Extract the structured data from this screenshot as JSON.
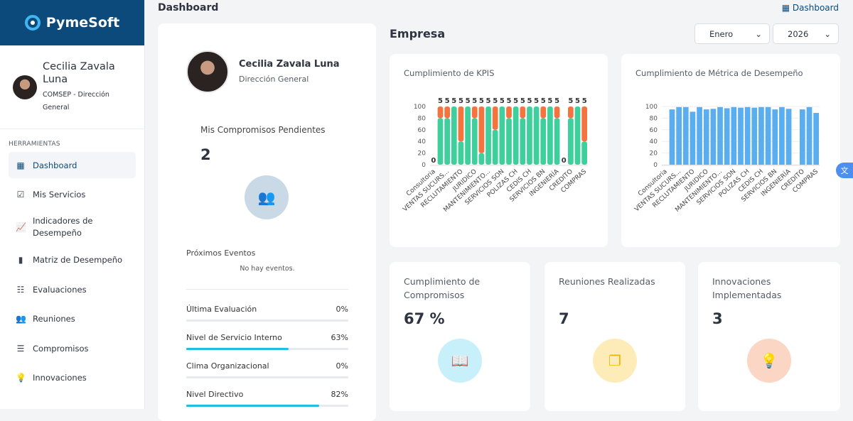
{
  "brand": "PymeSoft",
  "user": {
    "name": "Cecilia Zavala Luna",
    "role": "COMSEP - Dirección General"
  },
  "sidebar": {
    "section": "HERRAMIENTAS",
    "items": [
      {
        "label": "Dashboard",
        "icon": "dashboard-icon",
        "glyph": "▦"
      },
      {
        "label": "Mis Servicios",
        "icon": "services-icon",
        "glyph": "☑"
      },
      {
        "label": "Indicadores de Desempeño",
        "icon": "trend-chart-icon",
        "glyph": "📈"
      },
      {
        "label": "Matriz de Desempeño",
        "icon": "bar-chart-icon",
        "glyph": "▮"
      },
      {
        "label": "Evaluaciones",
        "icon": "checklist-icon",
        "glyph": "☷"
      },
      {
        "label": "Reuniones",
        "icon": "group-icon",
        "glyph": "👥"
      },
      {
        "label": "Compromisos",
        "icon": "list-icon",
        "glyph": "☰"
      },
      {
        "label": "Innovaciones",
        "icon": "lightbulb-icon",
        "glyph": "💡"
      }
    ]
  },
  "header": {
    "title": "Dashboard",
    "right_link": "Dashboard"
  },
  "profile": {
    "name": "Cecilia Zavala Luna",
    "role": "Dirección General",
    "pending_label": "Mis Compromisos Pendientes",
    "pending_count": "2",
    "events_label": "Próximos Eventos",
    "no_events": "No hay eventos.",
    "metrics": [
      {
        "label": "Última Evaluación",
        "value": "0%",
        "pct": 0
      },
      {
        "label": "Nivel de Servicio Interno",
        "value": "63%",
        "pct": 63
      },
      {
        "label": "Clima Organizacional",
        "value": "0%",
        "pct": 0
      },
      {
        "label": "Nivel Directivo",
        "value": "82%",
        "pct": 82
      }
    ]
  },
  "empresa": {
    "title": "Empresa",
    "month": "Enero",
    "year": "2026"
  },
  "chart_data": [
    {
      "type": "bar",
      "stacked": true,
      "title": "Cumplimiento de KPIS",
      "ylim": [
        0,
        100
      ],
      "yticks": [
        0,
        20,
        40,
        60,
        80,
        100
      ],
      "grid": false,
      "categories": [
        "Consultoria",
        "",
        "VENTAS SUCURS...",
        "",
        "RECLUTAMIENTO",
        "",
        "JURIDICO",
        "",
        "MANTENIMIENTO...",
        "",
        "SERVICIOS SON",
        "",
        "POLIZAS CH",
        "",
        "CEDIS CH",
        "",
        "SERVICIOS BN",
        "",
        "INGENIERÍA",
        "",
        "CREDITO",
        "",
        "COMPRAS"
      ],
      "series": [
        {
          "color": "#3ecf9c",
          "values": [
            0,
            80,
            80,
            100,
            40,
            100,
            80,
            20,
            100,
            60,
            100,
            80,
            100,
            80,
            100,
            100,
            80,
            100,
            80,
            0,
            80,
            100,
            40
          ]
        },
        {
          "color": "#f5733f",
          "values": [
            0,
            20,
            20,
            0,
            60,
            0,
            20,
            80,
            0,
            40,
            0,
            20,
            0,
            20,
            0,
            0,
            20,
            0,
            20,
            0,
            20,
            0,
            60
          ]
        }
      ],
      "data_labels": [
        "0",
        "5",
        "5",
        "5",
        "5",
        "5",
        "5",
        "5",
        "5",
        "5",
        "5",
        "5",
        "5",
        "5",
        "5",
        "5",
        "5",
        "5",
        "5",
        "0",
        "5",
        "5",
        "5"
      ]
    },
    {
      "type": "bar",
      "title": "Cumplimiento de Métrica de Desempeño",
      "ylim": [
        0,
        100
      ],
      "yticks": [
        0,
        20,
        40,
        60,
        80,
        100
      ],
      "grid": true,
      "categories": [
        "Consultoria",
        "",
        "VENTAS SUCURS...",
        "",
        "RECLUTAMIENTO",
        "",
        "JURIDICO",
        "",
        "MANTENIMIENTO...",
        "",
        "SERVICIOS SON",
        "",
        "POLIZAS CH",
        "",
        "CEDIS CH",
        "",
        "SERVICIOS BN",
        "",
        "INGENIERÍA",
        "",
        "CREDITO",
        "",
        "COMPRAS"
      ],
      "series": [
        {
          "color": "#5aaef0",
          "values": [
            null,
            95,
            99,
            99,
            91,
            99,
            95,
            96,
            99,
            97,
            99,
            98,
            99,
            98,
            99,
            99,
            95,
            99,
            96,
            null,
            95,
            99,
            89
          ]
        }
      ]
    }
  ],
  "stats": [
    {
      "label": "Cumplimiento de Compromisos",
      "value": "67 %",
      "icon": "book-icon",
      "glyph": "📖",
      "bg": "#c8f0fb",
      "fg": "#1a9fe0"
    },
    {
      "label": "Reuniones Realizadas",
      "value": "7",
      "icon": "bookmark-stack-icon",
      "glyph": "❐",
      "bg": "#fdebb8",
      "fg": "#f5b400"
    },
    {
      "label": "Innovaciones Implementadas",
      "value": "3",
      "icon": "lightbulb-icon",
      "glyph": "💡",
      "bg": "#fcd6c5",
      "fg": "#f0612a"
    }
  ]
}
